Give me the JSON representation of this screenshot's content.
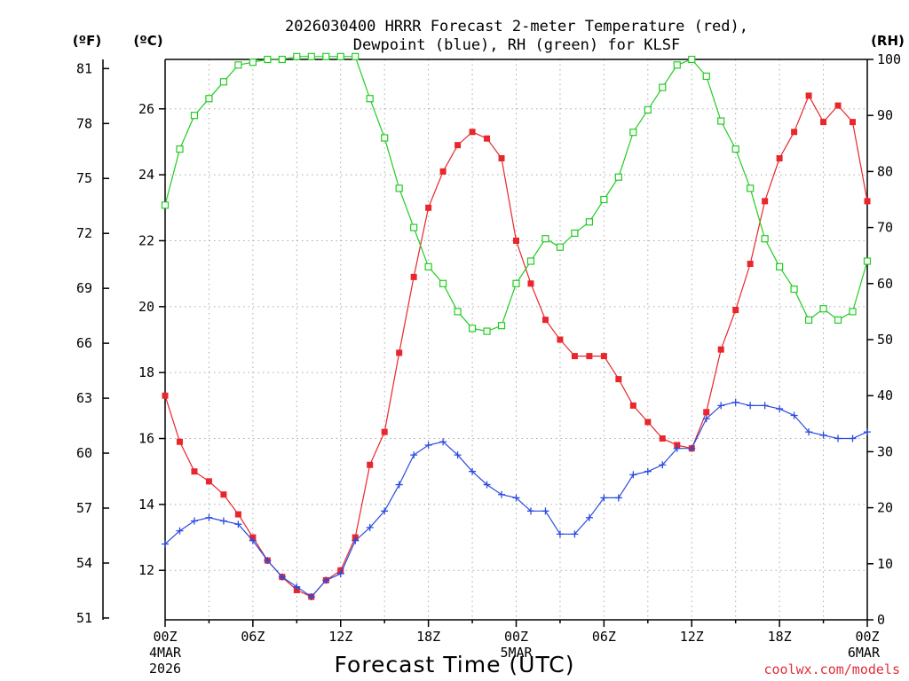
{
  "chart_data": {
    "type": "line",
    "title": [
      "2026030400 HRRR Forecast 2-meter Temperature (red),",
      "Dewpoint (blue), RH (green) for KLSF"
    ],
    "xlabel": "Forecast Time (UTC)",
    "units": {
      "fahrenheit": "(ºF)",
      "celsius": "(ºC)",
      "rh": "(RH)"
    },
    "credit": "coolwx.com/models",
    "x_ticks": [
      {
        "hour": 0,
        "label": "00Z",
        "sub": [
          "4MAR",
          "2026"
        ]
      },
      {
        "hour": 6,
        "label": "06Z"
      },
      {
        "hour": 12,
        "label": "12Z"
      },
      {
        "hour": 18,
        "label": "18Z"
      },
      {
        "hour": 24,
        "label": "00Z",
        "sub": [
          "5MAR"
        ]
      },
      {
        "hour": 30,
        "label": "06Z"
      },
      {
        "hour": 36,
        "label": "12Z"
      },
      {
        "hour": 42,
        "label": "18Z"
      },
      {
        "hour": 48,
        "label": "00Z",
        "sub": [
          "6MAR"
        ]
      }
    ],
    "xlim": [
      0,
      48
    ],
    "ylim_celsius": [
      10.5,
      27.5
    ],
    "celsius_ticks": [
      12,
      14,
      16,
      18,
      20,
      22,
      24,
      26
    ],
    "fahrenheit_ticks": [
      51,
      54,
      57,
      60,
      63,
      66,
      69,
      72,
      75,
      78,
      81
    ],
    "ylim_rh": [
      0,
      100
    ],
    "rh_ticks": [
      0,
      10,
      20,
      30,
      40,
      50,
      60,
      70,
      80,
      90,
      100
    ],
    "grid": true,
    "series": [
      {
        "name": "Temperature",
        "color": "#e8262c",
        "marker": "filled-square",
        "axis": "celsius",
        "values": [
          17.3,
          15.9,
          15.0,
          14.7,
          14.3,
          13.7,
          13.0,
          12.3,
          11.8,
          11.4,
          11.2,
          11.7,
          12.0,
          13.0,
          15.2,
          16.2,
          18.6,
          20.9,
          23.0,
          24.1,
          24.9,
          25.3,
          25.1,
          24.5,
          22.0,
          20.7,
          19.6,
          19.0,
          18.5,
          18.5,
          18.5,
          17.8,
          17.0,
          16.5,
          16.0,
          15.8,
          15.7,
          16.8,
          18.7,
          19.9,
          21.3,
          23.2,
          24.5,
          25.3,
          26.4,
          25.6,
          26.1,
          25.6,
          23.2
        ]
      },
      {
        "name": "Dewpoint",
        "color": "#2a4be0",
        "marker": "plus",
        "axis": "celsius",
        "values": [
          12.8,
          13.2,
          13.5,
          13.6,
          13.5,
          13.4,
          12.9,
          12.3,
          11.8,
          11.5,
          11.2,
          11.7,
          11.9,
          12.9,
          13.3,
          13.8,
          14.6,
          15.5,
          15.8,
          15.9,
          15.5,
          15.0,
          14.6,
          14.3,
          14.2,
          13.8,
          13.8,
          13.1,
          13.1,
          13.6,
          14.2,
          14.2,
          14.9,
          15.0,
          15.2,
          15.7,
          15.7,
          16.6,
          17.0,
          17.1,
          17.0,
          17.0,
          16.9,
          16.7,
          16.2,
          16.1,
          16.0,
          16.0,
          16.2
        ]
      },
      {
        "name": "RH",
        "color": "#22cc22",
        "marker": "open-square",
        "axis": "rh",
        "values": [
          74,
          84,
          90,
          93,
          96,
          99,
          99.5,
          100,
          100,
          100.5,
          100.5,
          100.5,
          100.5,
          100.5,
          93,
          86,
          77,
          70,
          63,
          60,
          55,
          52,
          51.5,
          52.5,
          60,
          64,
          68,
          66.5,
          69,
          71,
          75,
          79,
          87,
          91,
          95,
          99,
          100,
          97,
          89,
          84,
          77,
          68,
          63,
          59,
          53.5,
          55.5,
          53.5,
          55,
          64
        ]
      }
    ]
  }
}
